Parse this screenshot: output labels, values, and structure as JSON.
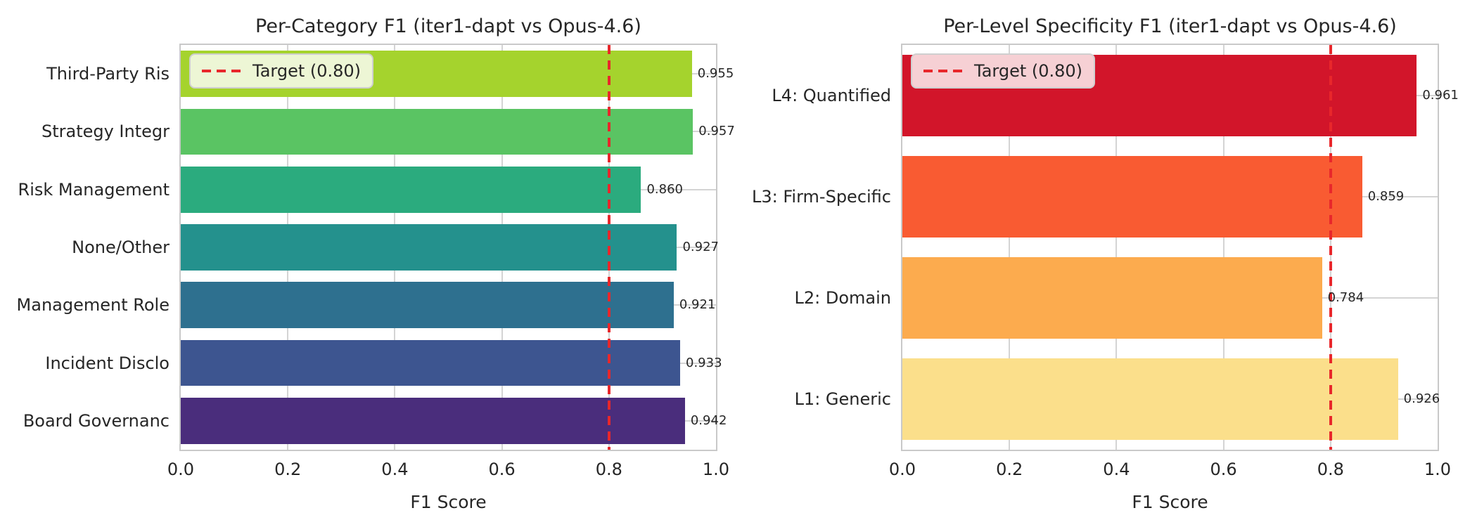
{
  "style": {
    "target_color": "#e8272b",
    "grid_color": "#d4d4d4",
    "spine_color": "#c9c9c9",
    "text_color": "#262626",
    "background": "#ffffff"
  },
  "chart_data": [
    {
      "type": "bar",
      "orientation": "horizontal",
      "title": "Per-Category F1 (iter1-dapt vs Opus-4.6)",
      "xlabel": "F1 Score",
      "xlim": [
        0.0,
        1.0
      ],
      "x_tick_labels": [
        "0.0",
        "0.2",
        "0.4",
        "0.6",
        "0.8",
        "1.0"
      ],
      "grid": true,
      "legend_position": "upper-left",
      "categories": [
        "Third-Party Ris",
        "Strategy Integr",
        "Risk Management",
        "None/Other",
        "Management Role",
        "Incident Disclo",
        "Board Governanc"
      ],
      "values": [
        0.955,
        0.957,
        0.86,
        0.927,
        0.921,
        0.933,
        0.942
      ],
      "value_labels": [
        "0.955",
        "0.957",
        "0.860",
        "0.927",
        "0.921",
        "0.933",
        "0.942"
      ],
      "bar_colors": [
        "#a5d32d",
        "#5ac463",
        "#2bab7e",
        "#24918d",
        "#2e708f",
        "#3d5590",
        "#4a2d7c"
      ],
      "target_line": {
        "value": 0.8,
        "label": "Target (0.80)",
        "color": "#e8272b",
        "style": "dashed"
      }
    },
    {
      "type": "bar",
      "orientation": "horizontal",
      "title": "Per-Level Specificity F1 (iter1-dapt vs Opus-4.6)",
      "xlabel": "F1 Score",
      "xlim": [
        0.0,
        1.0
      ],
      "x_tick_labels": [
        "0.0",
        "0.2",
        "0.4",
        "0.6",
        "0.8",
        "1.0"
      ],
      "grid": true,
      "legend_position": "upper-left",
      "categories": [
        "L4: Quantified",
        "L3: Firm-Specific",
        "L2: Domain",
        "L1: Generic"
      ],
      "values": [
        0.961,
        0.859,
        0.784,
        0.926
      ],
      "value_labels": [
        "0.961",
        "0.859",
        "0.784",
        "0.926"
      ],
      "bar_colors": [
        "#d2152a",
        "#f95b32",
        "#fcab4e",
        "#fbdf8b"
      ],
      "target_line": {
        "value": 0.8,
        "label": "Target (0.80)",
        "color": "#e8272b",
        "style": "dashed"
      }
    }
  ]
}
